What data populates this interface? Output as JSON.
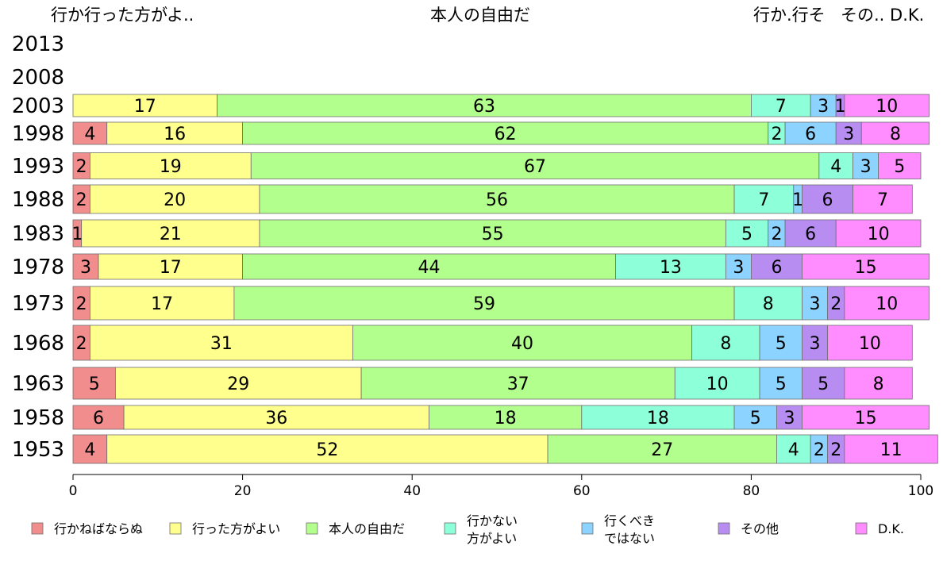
{
  "chart_data": {
    "type": "bar",
    "orientation": "horizontal",
    "stacked": true,
    "header_labels": [
      "行か行った方がよ..",
      "本人の自由だ",
      "行か.行そ",
      "その.. D.K."
    ],
    "categories": [
      "2013",
      "2008",
      "2003",
      "1998",
      "1993",
      "1988",
      "1983",
      "1978",
      "1973",
      "1968",
      "1963",
      "1958",
      "1953"
    ],
    "series": [
      {
        "name": "行かねばならぬ",
        "color": "#f28d8d",
        "values": [
          null,
          null,
          null,
          4,
          2,
          2,
          1,
          3,
          2,
          2,
          5,
          6,
          4
        ]
      },
      {
        "name": "行った方がよい",
        "color": "#ffff8d",
        "values": [
          null,
          null,
          17,
          16,
          19,
          20,
          21,
          17,
          17,
          31,
          29,
          36,
          52
        ]
      },
      {
        "name": "本人の自由だ",
        "color": "#b3ff8d",
        "values": [
          null,
          null,
          63,
          62,
          67,
          56,
          55,
          44,
          59,
          40,
          37,
          18,
          27
        ]
      },
      {
        "name": "行かない方がよい",
        "color": "#8dffd9",
        "values": [
          null,
          null,
          7,
          2,
          4,
          7,
          5,
          13,
          8,
          8,
          10,
          18,
          4
        ]
      },
      {
        "name": "行くべきではない",
        "color": "#8dd3ff",
        "values": [
          null,
          null,
          3,
          6,
          3,
          1,
          2,
          3,
          3,
          5,
          5,
          5,
          2
        ]
      },
      {
        "name": "その他",
        "color": "#b88df2",
        "values": [
          null,
          null,
          1,
          3,
          null,
          6,
          6,
          6,
          2,
          3,
          5,
          3,
          2
        ]
      },
      {
        "name": "D.K.",
        "color": "#ff8dff",
        "values": [
          null,
          null,
          10,
          8,
          5,
          7,
          10,
          15,
          10,
          10,
          8,
          15,
          11
        ]
      }
    ],
    "legend_labels": [
      "行かねばならぬ",
      [
        "行った方がよい"
      ],
      [
        "本人の自由だ"
      ],
      [
        "行かない",
        "方がよい"
      ],
      [
        "行くべき",
        "ではない"
      ],
      [
        "その他"
      ],
      [
        "D.K."
      ]
    ],
    "xlim": [
      0,
      100
    ],
    "xticks": [
      "0",
      "20",
      "40",
      "60",
      "80",
      "100"
    ],
    "grid": false,
    "legend_position": "bottom"
  }
}
